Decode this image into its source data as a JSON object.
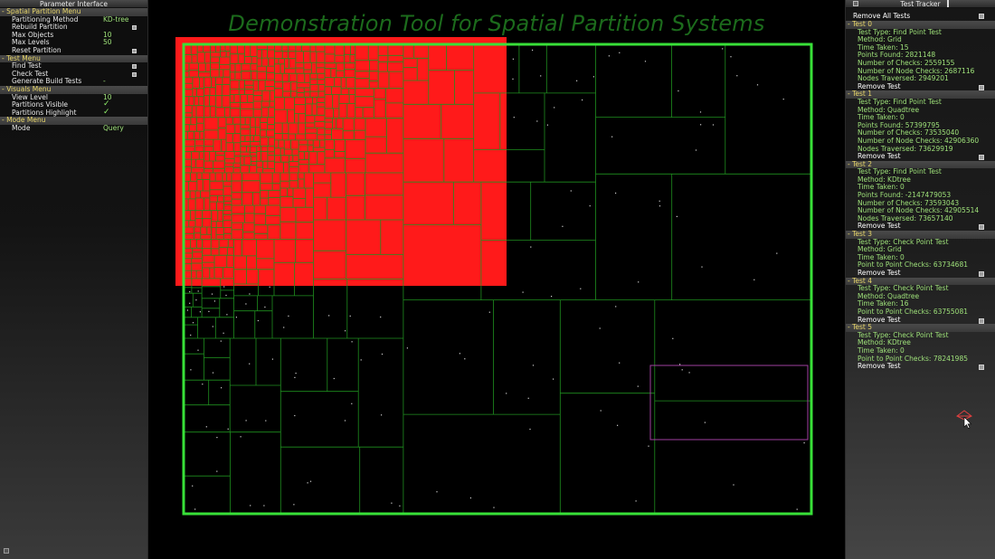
{
  "left_panel": {
    "title": "Parameter Interface",
    "menus": [
      {
        "header": "- Spatial Partition Menu",
        "rows": [
          {
            "label": "Partitioning Method",
            "value": "KD-tree",
            "control": "value"
          },
          {
            "label": "Rebuild Partition",
            "value": "",
            "control": "box"
          },
          {
            "label": "Max Objects",
            "value": "10",
            "control": "value"
          },
          {
            "label": "Max Levels",
            "value": "50",
            "control": "value"
          },
          {
            "label": "Reset Partition",
            "value": "",
            "control": "box"
          }
        ]
      },
      {
        "header": "- Test Menu",
        "rows": [
          {
            "label": "Find Test",
            "value": "",
            "control": "box"
          },
          {
            "label": "Check Test",
            "value": "",
            "control": "box"
          },
          {
            "label": "Generate Build Tests",
            "value": "-",
            "control": "value"
          }
        ]
      },
      {
        "header": "- Visuals Menu",
        "rows": [
          {
            "label": "View Level",
            "value": "10",
            "control": "value"
          },
          {
            "label": "Partitions Visible",
            "value": "✓",
            "control": "check"
          },
          {
            "label": "Partitions Highlight",
            "value": "✓",
            "control": "check"
          }
        ]
      },
      {
        "header": "- Mode Menu",
        "rows": [
          {
            "label": "Mode",
            "value": "Query",
            "control": "value"
          }
        ]
      }
    ]
  },
  "canvas": {
    "title": "Demonstration Tool for Spatial Partition Systems",
    "colors": {
      "partition_line": "#1f8f1f",
      "boundary": "#38e038",
      "query_region": "#ff1a1a",
      "highlight": "#a040a0",
      "points": "#cfcfcf"
    }
  },
  "right_panel": {
    "title": "Test Tracker",
    "remove_all_label": "Remove All Tests",
    "remove_label": "Remove Test",
    "tests": [
      {
        "header": "- Test 0",
        "lines": [
          "Test Type: Find Point Test",
          "Method: Grid",
          "Time Taken: 15",
          "Points Found: 2821148",
          "Number of Checks: 2559155",
          "Number of Node Checks: 2687116",
          "Nodes Traversed: 2949201"
        ]
      },
      {
        "header": "- Test 1",
        "lines": [
          "Test Type: Find Point Test",
          "Method: Quadtree",
          "Time Taken: 0",
          "Points Found: 57399795",
          "Number of Checks: 73535040",
          "Number of Node Checks: 42906360",
          "Nodes Traversed: 73629919"
        ]
      },
      {
        "header": "- Test 2",
        "lines": [
          "Test Type: Find Point Test",
          "Method: KDtree",
          "Time Taken: 0",
          "Points Found: -2147479053",
          "Number of Checks: 73593043",
          "Number of Node Checks: 42905514",
          "Nodes Traversed: 73657140"
        ]
      },
      {
        "header": "- Test 3",
        "lines": [
          "Test Type: Check Point Test",
          "Method: Grid",
          "Time Taken: 0",
          "Point to Point Checks: 63734681"
        ]
      },
      {
        "header": "- Test 4",
        "lines": [
          "Test Type: Check Point Test",
          "Method: Quadtree",
          "Time Taken: 16",
          "Point to Point Checks: 63755081"
        ]
      },
      {
        "header": "- Test 5",
        "lines": [
          "Test Type: Check Point Test",
          "Method: KDtree",
          "Time Taken: 0",
          "Point to Point Checks: 78241985"
        ]
      }
    ]
  }
}
